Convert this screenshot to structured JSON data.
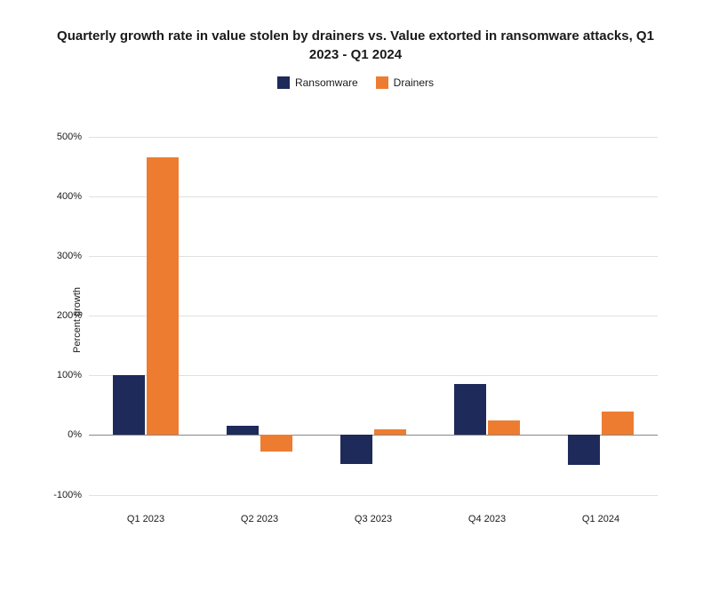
{
  "chart": {
    "type": "bar",
    "title": "Quarterly growth rate in value stolen by drainers vs. Value extorted in ransomware attacks, Q1 2023 - Q1 2024",
    "ylabel": "Percent growth",
    "title_fontsize": 15,
    "label_fontsize": 11,
    "background_color": "#ffffff",
    "grid_color": "#e0e0e0",
    "zero_line_color": "#888888",
    "ylim": [
      -120,
      550
    ],
    "yticks": [
      -100,
      0,
      100,
      200,
      300,
      400,
      500
    ],
    "ytick_format": "percent",
    "categories": [
      "Q1 2023",
      "Q2 2023",
      "Q3 2023",
      "Q4 2023",
      "Q1 2024"
    ],
    "series": [
      {
        "name": "Ransomware",
        "color": "#1e2a5a",
        "values": [
          100,
          15,
          -48,
          85,
          -50
        ]
      },
      {
        "name": "Drainers",
        "color": "#ed7c31",
        "values": [
          465,
          -28,
          10,
          25,
          40
        ]
      }
    ],
    "bar_width": 0.28,
    "bar_gap": 0.02,
    "legend_position": "top"
  }
}
